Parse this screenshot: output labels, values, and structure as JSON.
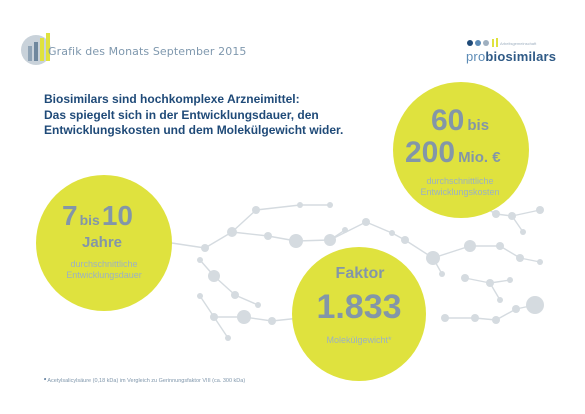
{
  "header": {
    "title": "Grafik des Monats September 2015"
  },
  "logo": {
    "small_text": "Arbeitsgemeinschaft",
    "pro": "pro",
    "bio": "biosimilars"
  },
  "headline": {
    "line1": "Biosimilars sind hochkomplexe Arzneimittel:",
    "line2": "Das spiegelt sich in der Entwicklungsdauer, den",
    "line3": "Entwicklungskosten und dem Molekülgewicht wider."
  },
  "duration": {
    "from": "7",
    "bis": "bis",
    "to": "10",
    "unit": "Jahre",
    "desc1": "durchschnittliche",
    "desc2": "Entwicklungsdauer"
  },
  "costs": {
    "from": "60",
    "bis": "bis",
    "to": "200",
    "unit": "Mio. €",
    "desc1": "durchschnittliche",
    "desc2": "Entwicklungskosten"
  },
  "weight": {
    "label": "Faktor",
    "value": "1.833",
    "desc": "Molekülgewicht*"
  },
  "footnote": {
    "star": "*",
    "text": "Acetylsalicylsäure (0,18 kDa) im Vergleich zu Gerinnungsfaktor VIII (ca. 300 kDa)"
  },
  "colors": {
    "circle": "#dfe23e",
    "navy": "#1f4a78",
    "grey": "#8396a8"
  }
}
